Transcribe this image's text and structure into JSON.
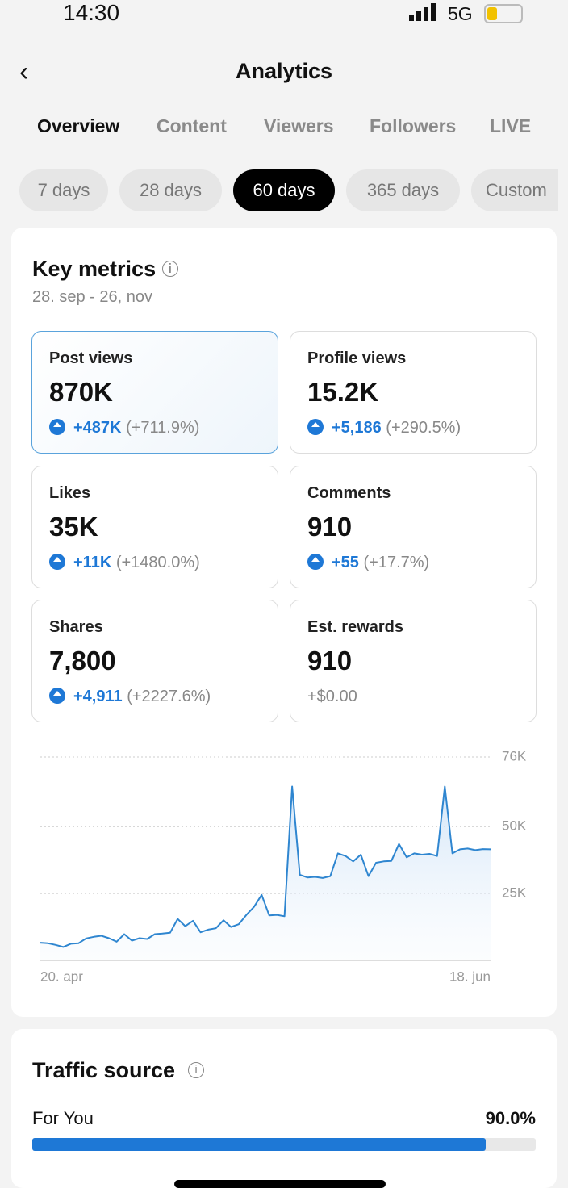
{
  "status": {
    "time": "14:30",
    "network": "5G"
  },
  "header": {
    "title": "Analytics"
  },
  "tabs": [
    "Overview",
    "Content",
    "Viewers",
    "Followers",
    "LIVE"
  ],
  "ranges": [
    "7 days",
    "28 days",
    "60 days",
    "365 days",
    "Custom"
  ],
  "key_metrics": {
    "title": "Key metrics",
    "date_range": "28. sep - 26, nov",
    "cards": [
      {
        "label": "Post views",
        "value": "870K",
        "change": "+487K",
        "pct": "(+711.9%)"
      },
      {
        "label": "Profile views",
        "value": "15.2K",
        "change": "+5,186",
        "pct": "(+290.5%)"
      },
      {
        "label": "Likes",
        "value": "35K",
        "change": "+11K",
        "pct": "(+1480.0%)"
      },
      {
        "label": "Comments",
        "value": "910",
        "change": "+55",
        "pct": "(+17.7%)"
      },
      {
        "label": "Shares",
        "value": "7,800",
        "change": "+4,911",
        "pct": "(+2227.6%)"
      },
      {
        "label": "Est. rewards",
        "value": "910",
        "pct": "+$0.00"
      }
    ]
  },
  "chart_data": {
    "type": "line",
    "color": "#2f86d0",
    "x": [
      "20. apr",
      null,
      null,
      null,
      null,
      null,
      null,
      null,
      null,
      null,
      null,
      null,
      null,
      null,
      null,
      null,
      null,
      null,
      null,
      null,
      null,
      null,
      null,
      null,
      null,
      null,
      null,
      null,
      null,
      null,
      null,
      null,
      null,
      null,
      null,
      null,
      null,
      null,
      null,
      null,
      null,
      null,
      null,
      null,
      null,
      null,
      null,
      null,
      null,
      null,
      null,
      null,
      null,
      null,
      null,
      null,
      null,
      null,
      null,
      "18. jun"
    ],
    "values": [
      6600,
      6400,
      5800,
      5000,
      6200,
      6400,
      8200,
      8800,
      9200,
      8300,
      7000,
      9800,
      7400,
      8300,
      8000,
      9800,
      10000,
      10300,
      15500,
      12800,
      14800,
      10500,
      11500,
      12000,
      15000,
      12500,
      13500,
      17000,
      20000,
      24500,
      16800,
      17000,
      16500,
      65000,
      32000,
      31000,
      31200,
      30800,
      31500,
      40000,
      39000,
      37000,
      39500,
      31500,
      36500,
      37000,
      37200,
      43500,
      38500,
      40000,
      39500,
      39800,
      39000,
      65000,
      40000,
      41500,
      41800,
      41200,
      41600,
      41500
    ],
    "ylim": [
      0,
      76000
    ],
    "yticks": [
      {
        "value": 25000,
        "label": "25K"
      },
      {
        "value": 50000,
        "label": "50K"
      },
      {
        "value": 76000,
        "label": "76K"
      }
    ],
    "grid": true
  },
  "traffic": {
    "title": "Traffic source",
    "rows": [
      {
        "label": "For You",
        "value": 90,
        "value_label": "90.0%"
      }
    ]
  }
}
